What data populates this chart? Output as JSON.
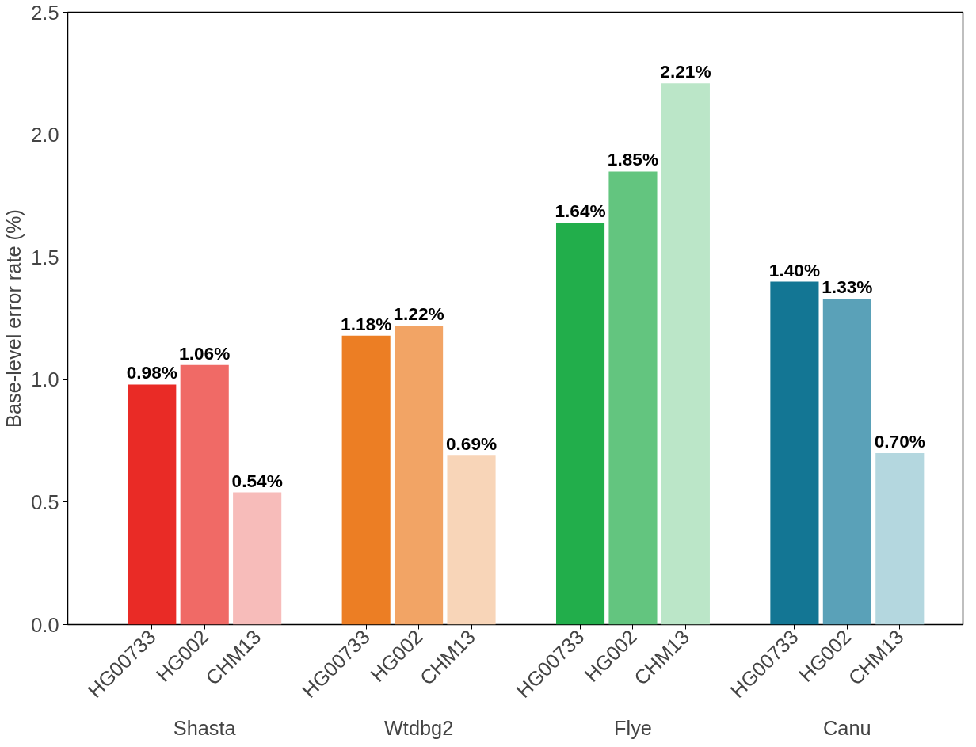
{
  "chart_data": {
    "type": "bar",
    "ylabel": "Base-level error rate (%)",
    "categories": [
      "Shasta",
      "Wtdbg2",
      "Flye",
      "Canu"
    ],
    "series": [
      {
        "name": "HG00733",
        "colors": [
          "#e92b26",
          "#ec7e24",
          "#22ae4b",
          "#137694"
        ],
        "values": [
          0.98,
          1.18,
          1.64,
          1.4
        ],
        "value_labels": [
          "0.98%",
          "1.18%",
          "1.64%",
          "1.40%"
        ]
      },
      {
        "name": "HG002",
        "colors": [
          "#f06a66",
          "#f2a465",
          "#63c57f",
          "#5aa1b8"
        ],
        "values": [
          1.06,
          1.22,
          1.85,
          1.33
        ],
        "value_labels": [
          "1.06%",
          "1.22%",
          "1.85%",
          "1.33%"
        ]
      },
      {
        "name": "CHM13",
        "colors": [
          "#f7bcba",
          "#f8d5b8",
          "#bbe6c8",
          "#b4d7df"
        ],
        "values": [
          0.54,
          0.69,
          2.21,
          0.7
        ],
        "value_labels": [
          "0.54%",
          "0.69%",
          "2.21%",
          "0.70%"
        ]
      }
    ],
    "ylim": [
      0,
      2.5
    ],
    "yticks": [
      {
        "value": 0,
        "label": "0.0"
      },
      {
        "value": 0.5,
        "label": "0.5"
      },
      {
        "value": 1,
        "label": "1.0"
      },
      {
        "value": 1.5,
        "label": "1.5"
      },
      {
        "value": 2,
        "label": "2.0"
      },
      {
        "value": 2.5,
        "label": "2.5"
      }
    ],
    "grid": false
  }
}
